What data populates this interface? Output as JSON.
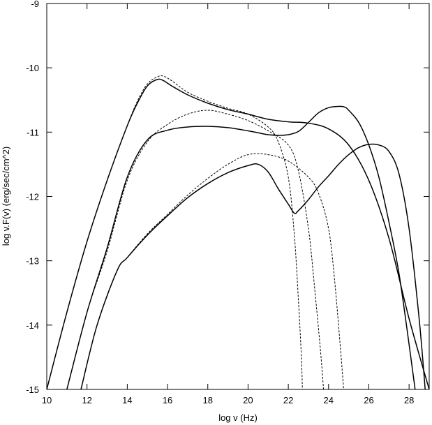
{
  "chart_data": {
    "type": "line",
    "title": "",
    "xlabel": "log v (Hz)",
    "ylabel": "log v.F(v) (erg/sec/cm^2)",
    "xlim": [
      10,
      29
    ],
    "ylim": [
      -15,
      -9
    ],
    "grid": false,
    "legend": "none",
    "x_ticks": [
      "10",
      "12",
      "14",
      "16",
      "18",
      "20",
      "22",
      "24",
      "26",
      "28"
    ],
    "y_ticks": [
      "-9",
      "-10",
      "-11",
      "-12",
      "-13",
      "-14",
      "-15"
    ],
    "series": [
      {
        "style": "solid",
        "x": [
          10.0,
          11.0,
          12.0,
          13.0,
          14.0,
          14.5,
          15.0,
          15.5,
          15.8,
          16.2,
          17.0,
          18.0,
          19.0,
          20.0,
          21.0,
          22.0,
          23.0,
          24.0,
          25.0,
          26.0,
          27.0,
          28.0,
          29.0
        ],
        "y": [
          -15.0,
          -13.8,
          -12.7,
          -11.75,
          -10.9,
          -10.55,
          -10.28,
          -10.18,
          -10.2,
          -10.28,
          -10.42,
          -10.55,
          -10.65,
          -10.72,
          -10.8,
          -10.84,
          -10.86,
          -10.95,
          -11.2,
          -11.75,
          -12.65,
          -13.9,
          -15.0
        ]
      },
      {
        "style": "dashed",
        "x": [
          10.0,
          11.0,
          12.0,
          13.0,
          14.0,
          14.5,
          15.0,
          15.5,
          15.8,
          16.2,
          17.0,
          18.0,
          19.0,
          20.0,
          21.0,
          21.5,
          22.0,
          22.3,
          22.5,
          22.65,
          22.7
        ],
        "y": [
          -15.0,
          -13.8,
          -12.7,
          -11.75,
          -10.9,
          -10.52,
          -10.25,
          -10.14,
          -10.13,
          -10.2,
          -10.38,
          -10.52,
          -10.63,
          -10.72,
          -10.92,
          -11.15,
          -11.7,
          -12.6,
          -13.6,
          -14.5,
          -15.0
        ]
      },
      {
        "style": "solid",
        "x": [
          11.0,
          12.0,
          13.0,
          14.0,
          15.0,
          16.0,
          17.0,
          18.0,
          19.0,
          20.0,
          20.5,
          21.0,
          21.5,
          22.0,
          22.5,
          23.0,
          23.5,
          24.0,
          24.5,
          24.8,
          25.0,
          25.5,
          26.0,
          26.5,
          27.0,
          27.5,
          28.0,
          28.3
        ],
        "y": [
          -15.0,
          -13.8,
          -12.8,
          -11.7,
          -11.12,
          -10.97,
          -10.92,
          -10.91,
          -10.93,
          -10.98,
          -11.01,
          -11.04,
          -11.05,
          -11.04,
          -10.99,
          -10.85,
          -10.7,
          -10.62,
          -10.6,
          -10.61,
          -10.66,
          -10.85,
          -11.2,
          -11.7,
          -12.4,
          -13.2,
          -14.3,
          -15.0
        ]
      },
      {
        "style": "dashed",
        "x": [
          11.0,
          12.0,
          13.0,
          14.0,
          15.0,
          16.0,
          17.0,
          18.0,
          19.0,
          20.0,
          21.0,
          22.0,
          22.5,
          23.0,
          23.3,
          23.6,
          23.75
        ],
        "y": [
          -15.0,
          -13.8,
          -12.85,
          -11.75,
          -11.15,
          -10.88,
          -10.72,
          -10.66,
          -10.72,
          -10.82,
          -10.98,
          -11.2,
          -11.6,
          -12.5,
          -13.4,
          -14.4,
          -15.0
        ]
      },
      {
        "style": "solid",
        "x": [
          11.7,
          12.5,
          13.5,
          14.0,
          15.0,
          16.0,
          17.0,
          18.0,
          19.0,
          20.0,
          20.5,
          21.0,
          21.5,
          22.0,
          22.3,
          22.5,
          23.0,
          23.5,
          24.0,
          24.5,
          25.0,
          25.5,
          26.0,
          26.5,
          27.0,
          27.5,
          28.0,
          28.5,
          28.8
        ],
        "y": [
          -15.0,
          -14.0,
          -13.15,
          -12.95,
          -12.6,
          -12.3,
          -12.02,
          -11.8,
          -11.63,
          -11.52,
          -11.5,
          -11.62,
          -11.88,
          -12.12,
          -12.26,
          -12.22,
          -12.05,
          -11.85,
          -11.68,
          -11.5,
          -11.35,
          -11.24,
          -11.19,
          -11.2,
          -11.3,
          -11.65,
          -12.5,
          -13.9,
          -15.0
        ]
      },
      {
        "style": "dashed",
        "x": [
          11.7,
          12.5,
          13.5,
          14.0,
          15.0,
          16.0,
          17.0,
          18.0,
          19.0,
          20.0,
          21.0,
          22.0,
          23.0,
          23.5,
          24.0,
          24.3,
          24.6,
          24.75
        ],
        "y": [
          -15.0,
          -14.0,
          -13.15,
          -12.95,
          -12.58,
          -12.28,
          -11.98,
          -11.72,
          -11.5,
          -11.35,
          -11.35,
          -11.45,
          -11.7,
          -11.95,
          -12.5,
          -13.3,
          -14.4,
          -15.0
        ]
      }
    ]
  }
}
